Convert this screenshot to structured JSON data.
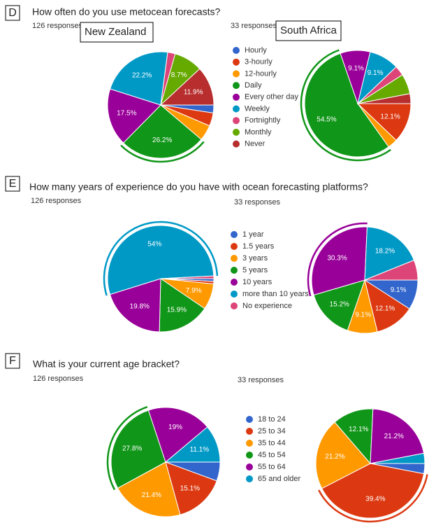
{
  "chart_data": [
    {
      "type": "pie",
      "panel": "D",
      "title": "How often do you use metocean forecasts?",
      "categories": [
        "Hourly",
        "3-hourly",
        "12-hourly",
        "Daily",
        "Every other day",
        "Weekly",
        "Fortnightly",
        "Monthly",
        "Never"
      ],
      "colors": [
        "#3366cc",
        "#dc3912",
        "#ff9900",
        "#109618",
        "#990099",
        "#0099c6",
        "#dd4477",
        "#66aa00",
        "#b82e2e"
      ],
      "pies": [
        {
          "label": "New Zealand",
          "responses": "126 responses",
          "highlight": 3,
          "values": [
            2.4,
            4,
            4.8,
            26.2,
            17.5,
            22.2,
            2.3,
            8.7,
            11.9
          ],
          "value_labels": [
            null,
            null,
            null,
            "26.2%",
            "17.5%",
            "22.2%",
            null,
            "8.7%",
            "11.9%"
          ]
        },
        {
          "label": "South Africa",
          "responses": "33 responses",
          "highlight": 3,
          "values": [
            0,
            12.1,
            3,
            54.5,
            9.1,
            9.1,
            3,
            6.1,
            3
          ],
          "value_labels": [
            null,
            "12.1%",
            null,
            "54.5%",
            "9.1%",
            "9.1%",
            null,
            null,
            null
          ]
        }
      ]
    },
    {
      "type": "pie",
      "panel": "E",
      "title": "How many years of experience do you have with ocean forecasting platforms?",
      "categories": [
        "1 year",
        "1.5 years",
        "3 years",
        "5 years",
        "10 years",
        "more than 10 years.",
        "No experience"
      ],
      "colors": [
        "#3366cc",
        "#dc3912",
        "#ff9900",
        "#109618",
        "#990099",
        "#0099c6",
        "#dd4477"
      ],
      "pies": [
        {
          "responses": "126 responses",
          "highlight": 5,
          "values": [
            0.8,
            0.8,
            7.9,
            15.9,
            19.8,
            54,
            0.8
          ],
          "value_labels": [
            null,
            null,
            "7.9%",
            "15.9%",
            "19.8%",
            "54%",
            null
          ]
        },
        {
          "responses": "33 responses",
          "highlight": 4,
          "values": [
            9.1,
            12.1,
            9.1,
            15.2,
            30.3,
            18.2,
            6.1
          ],
          "value_labels": [
            "9.1%",
            "12.1%",
            "9.1%",
            "15.2%",
            "30.3%",
            "18.2%",
            null
          ]
        }
      ]
    },
    {
      "type": "pie",
      "panel": "F",
      "title": "What is your current age bracket?",
      "categories": [
        "18 to 24",
        "25 to 34",
        "35 to 44",
        "45 to 54",
        "55 to 64",
        "65 and older"
      ],
      "colors": [
        "#3366cc",
        "#dc3912",
        "#ff9900",
        "#109618",
        "#990099",
        "#0099c6"
      ],
      "pies": [
        {
          "responses": "126 responses",
          "highlight": 3,
          "values": [
            5.6,
            15.1,
            21.4,
            27.8,
            19,
            11.1
          ],
          "value_labels": [
            null,
            "15.1%",
            "21.4%",
            "27.8%",
            "19%",
            "11.1%"
          ]
        },
        {
          "responses": "33 responses",
          "highlight": 1,
          "values": [
            3,
            39.4,
            21.2,
            12.1,
            21.2,
            3
          ],
          "value_labels": [
            null,
            "39.4%",
            "21.2%",
            "12.1%",
            "21.2%",
            null
          ]
        }
      ]
    }
  ]
}
